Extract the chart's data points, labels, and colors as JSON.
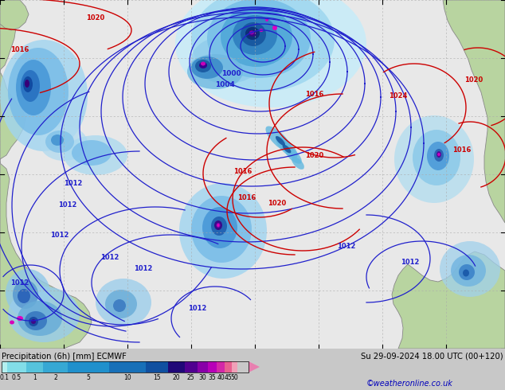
{
  "title_left": "Precipitation (6h) [mm] ECMWF",
  "title_right": "Su 29-09-2024 18.00 UTC (00+120)",
  "credit": "©weatheronline.co.uk",
  "colorbar_values": [
    0.1,
    0.5,
    1,
    2,
    5,
    10,
    15,
    20,
    25,
    30,
    35,
    40,
    45,
    50
  ],
  "colorbar_colors": [
    "#b4f0f0",
    "#82dde8",
    "#56c3dc",
    "#36a8d4",
    "#2090cc",
    "#1870b8",
    "#1050a0",
    "#200878",
    "#500090",
    "#8800a8",
    "#b800b8",
    "#d428a8",
    "#e86090",
    "#f0a0b8"
  ],
  "map_bg": "#e8e8e8",
  "ocean_color": "#d0e8f0",
  "land_color_green": "#b8d4a0",
  "land_color_light": "#d4e8c0",
  "grid_color": "#aaaaaa",
  "blue_isobar_color": "#2020cc",
  "red_isobar_color": "#cc0000",
  "bottom_bg": "#c8c8c8",
  "credit_color": "#0000bb",
  "text_color": "#000000",
  "label_fontsize": 7.2,
  "isobar_fontsize": 6.0
}
